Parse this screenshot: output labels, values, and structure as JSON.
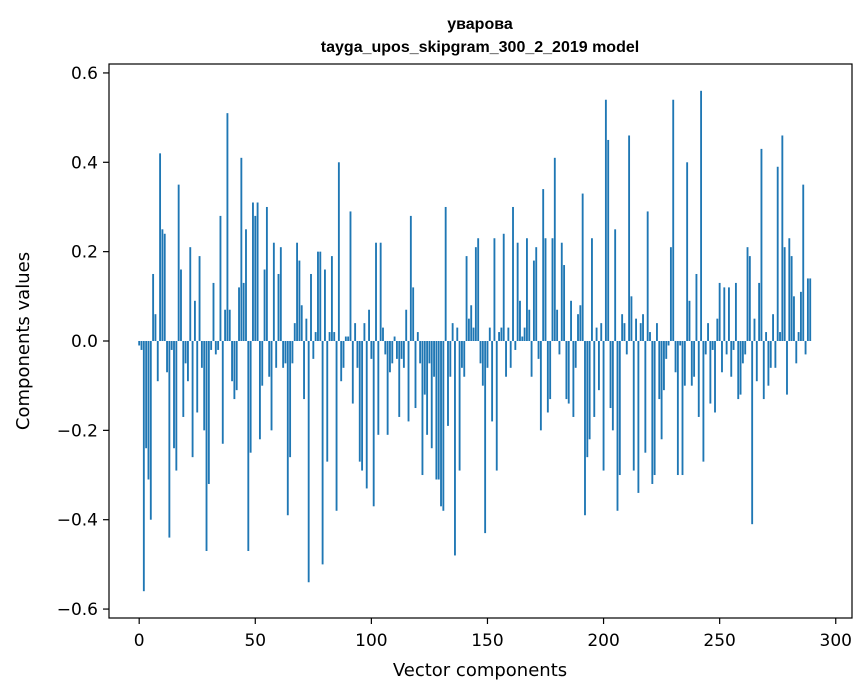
{
  "chart_data": {
    "type": "bar",
    "title": "уварова",
    "subtitle": "tayga_upos_skipgram_300_2_2019 model",
    "xlabel": "Vector components",
    "ylabel": "Components values",
    "xlim": [
      -13,
      307
    ],
    "ylim": [
      -0.62,
      0.62
    ],
    "xticks": [
      0,
      50,
      100,
      150,
      200,
      250,
      300
    ],
    "yticks": [
      -0.6,
      -0.4,
      -0.2,
      0.0,
      0.2,
      0.4,
      0.6
    ],
    "ytick_labels": [
      "−0.6",
      "−0.4",
      "−0.2",
      "0.0",
      "0.2",
      "0.4",
      "0.6"
    ],
    "bar_color": "#1f77b4",
    "bar_width": 0.8,
    "values": [
      -0.01,
      -0.02,
      -0.56,
      -0.24,
      -0.31,
      -0.4,
      0.15,
      0.06,
      -0.09,
      0.42,
      0.25,
      0.24,
      -0.07,
      -0.44,
      -0.02,
      -0.24,
      -0.29,
      0.35,
      0.16,
      -0.17,
      -0.05,
      -0.09,
      0.21,
      -0.26,
      0.09,
      -0.16,
      0.19,
      -0.06,
      -0.2,
      -0.47,
      -0.32,
      -0.02,
      0.13,
      -0.03,
      -0.02,
      0.28,
      -0.23,
      0.07,
      0.51,
      0.07,
      -0.09,
      -0.13,
      -0.11,
      0.12,
      0.41,
      0.13,
      0.25,
      -0.47,
      -0.25,
      0.31,
      0.28,
      0.31,
      -0.22,
      -0.1,
      0.16,
      0.3,
      -0.08,
      -0.2,
      0.22,
      -0.06,
      0.15,
      0.21,
      -0.06,
      -0.05,
      -0.39,
      -0.26,
      -0.05,
      0.04,
      0.22,
      0.18,
      0.08,
      -0.13,
      0.05,
      -0.54,
      0.15,
      -0.04,
      0.02,
      0.2,
      0.2,
      -0.5,
      0.16,
      -0.27,
      0.02,
      0.19,
      0.02,
      -0.38,
      0.4,
      -0.09,
      -0.06,
      0.01,
      0.01,
      0.29,
      -0.14,
      0.04,
      -0.06,
      -0.27,
      -0.29,
      0.04,
      -0.33,
      0.07,
      -0.04,
      -0.37,
      0.22,
      -0.21,
      0.22,
      0.03,
      -0.03,
      -0.21,
      -0.07,
      -0.05,
      0.01,
      -0.04,
      -0.17,
      -0.04,
      -0.06,
      0.07,
      -0.18,
      0.28,
      0.12,
      -0.15,
      0.02,
      -0.05,
      -0.3,
      -0.12,
      -0.21,
      -0.05,
      -0.24,
      -0.08,
      -0.31,
      -0.31,
      -0.37,
      -0.38,
      0.3,
      -0.19,
      -0.08,
      0.04,
      -0.48,
      0.03,
      -0.29,
      -0.06,
      -0.08,
      0.19,
      0.05,
      0.08,
      0.03,
      0.21,
      0.23,
      -0.05,
      -0.1,
      -0.43,
      -0.06,
      0.03,
      -0.18,
      0.23,
      -0.29,
      0.02,
      0.03,
      0.24,
      -0.08,
      0.03,
      -0.06,
      0.3,
      -0.02,
      0.22,
      0.09,
      0.01,
      0.03,
      0.23,
      0.07,
      -0.08,
      0.18,
      0.21,
      -0.04,
      -0.2,
      0.34,
      0.23,
      -0.16,
      -0.13,
      0.23,
      0.41,
      0.07,
      -0.03,
      0.22,
      0.17,
      -0.13,
      -0.14,
      0.09,
      -0.17,
      -0.06,
      0.06,
      0.08,
      0.33,
      -0.39,
      -0.26,
      -0.22,
      0.23,
      -0.17,
      0.03,
      -0.11,
      0.04,
      -0.29,
      0.54,
      0.45,
      -0.15,
      -0.2,
      0.25,
      -0.38,
      -0.3,
      0.06,
      0.04,
      -0.03,
      0.46,
      0.1,
      -0.29,
      0.05,
      -0.34,
      0.04,
      0.06,
      -0.25,
      0.29,
      0.02,
      -0.32,
      -0.3,
      0.04,
      -0.13,
      -0.22,
      -0.11,
      -0.04,
      -0.01,
      0.21,
      0.54,
      -0.07,
      -0.3,
      -0.01,
      -0.3,
      -0.1,
      0.4,
      0.09,
      -0.1,
      -0.08,
      0.15,
      -0.17,
      0.56,
      -0.27,
      -0.03,
      0.04,
      -0.14,
      -0.02,
      -0.16,
      0.05,
      0.13,
      -0.07,
      0.12,
      -0.03,
      0.12,
      -0.08,
      -0.02,
      0.13,
      -0.13,
      -0.12,
      -0.05,
      -0.03,
      0.21,
      0.19,
      -0.41,
      0.05,
      -0.09,
      0.13,
      0.43,
      -0.13,
      0.02,
      -0.1,
      -0.06,
      0.06,
      -0.06,
      0.39,
      0.02,
      0.46,
      0.21,
      -0.12,
      0.23,
      0.19,
      0.1,
      -0.05,
      0.02,
      0.11,
      0.35,
      -0.03,
      0.14,
      0.14
    ]
  }
}
